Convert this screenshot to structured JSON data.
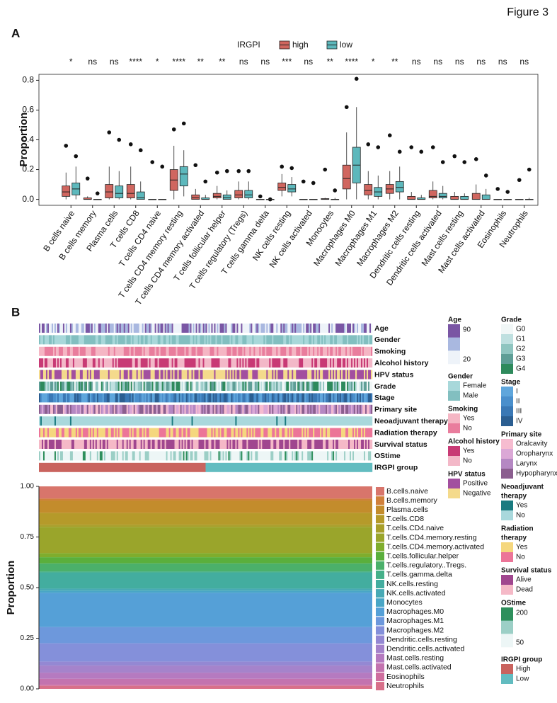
{
  "figure_label": "Figure 3",
  "panel_labels": [
    "A",
    "B"
  ],
  "chart_data": [
    {
      "type": "box",
      "legend_title": "IRGPI",
      "ylabel": "Proportion",
      "categories": [
        "B cells naive",
        "B cells memory",
        "Plasma cells",
        "T cells CD8",
        "T cells CD4 naive",
        "T cells CD4 memory resting",
        "T cells CD4 memory activated",
        "T cells follicular helper",
        "T cells regulatory (Tregs)",
        "T cells gamma delta",
        "NK cells resting",
        "NK cells activated",
        "Monocytes",
        "Macrophages M0",
        "Macrophages M1",
        "Macrophages M2",
        "Dendritic cells resting",
        "Dendritic cells activated",
        "Mast cells resting",
        "Mast cells activated",
        "Eosinophils",
        "Neutrophils"
      ],
      "significance": [
        "*",
        "ns",
        "ns",
        "****",
        "*",
        "****",
        "**",
        "**",
        "ns",
        "ns",
        "***",
        "ns",
        "**",
        "****",
        "*",
        "**",
        "ns",
        "ns",
        "ns",
        "ns",
        "ns",
        "ns"
      ],
      "ylim": [
        -0.04,
        0.84
      ],
      "yticks": [
        {
          "value": 0,
          "label": "0.0"
        },
        0.2,
        0.4,
        0.6,
        0.8
      ],
      "series": [
        {
          "name": "high",
          "color": "#d0665f",
          "whisker_low": [
            0,
            0,
            0,
            0,
            0,
            0,
            0,
            0,
            0,
            0,
            0.02,
            0,
            0,
            0,
            0,
            0,
            0,
            0,
            0,
            0,
            0,
            0
          ],
          "q1": [
            0.02,
            0,
            0.01,
            0.01,
            0,
            0.06,
            0,
            0.01,
            0.01,
            0,
            0.06,
            0,
            0,
            0.07,
            0.03,
            0.04,
            0,
            0.01,
            0,
            0,
            0,
            0
          ],
          "median": [
            0.05,
            0,
            0.05,
            0.04,
            0,
            0.13,
            0.01,
            0.02,
            0.03,
            0,
            0.08,
            0,
            0,
            0.14,
            0.06,
            0.07,
            0,
            0.02,
            0,
            0,
            0,
            0
          ],
          "q3": [
            0.09,
            0.01,
            0.1,
            0.1,
            0,
            0.2,
            0.03,
            0.04,
            0.06,
            0,
            0.11,
            0,
            0.005,
            0.23,
            0.1,
            0.1,
            0.02,
            0.06,
            0.02,
            0.04,
            0,
            0
          ],
          "whisker_high": [
            0.18,
            0.02,
            0.22,
            0.22,
            0,
            0.36,
            0.07,
            0.09,
            0.12,
            0,
            0.17,
            0,
            0.01,
            0.45,
            0.19,
            0.19,
            0.05,
            0.12,
            0.05,
            0.1,
            0,
            0
          ],
          "max": [
            0.36,
            0.14,
            0.45,
            0.37,
            0.25,
            0.47,
            0.23,
            0.18,
            0.19,
            0.02,
            0.22,
            0.12,
            0.2,
            0.62,
            0.37,
            0.43,
            0.35,
            0.35,
            0.29,
            0.27,
            0.07,
            0.13
          ]
        },
        {
          "name": "low",
          "color": "#5db8bc",
          "whisker_low": [
            0,
            0,
            0,
            0,
            0,
            0.02,
            0,
            0,
            0,
            0,
            0.02,
            0,
            0,
            0,
            0,
            0,
            0,
            0,
            0,
            0,
            0,
            0
          ],
          "q1": [
            0.03,
            0,
            0.01,
            0,
            0,
            0.09,
            0,
            0,
            0.01,
            0,
            0.05,
            0,
            0,
            0.11,
            0.02,
            0.05,
            0,
            0.01,
            0,
            0,
            0,
            0
          ],
          "median": [
            0.07,
            0,
            0.04,
            0.01,
            0,
            0.17,
            0,
            0.01,
            0.03,
            0,
            0.07,
            0,
            0,
            0.23,
            0.05,
            0.08,
            0,
            0.02,
            0,
            0,
            0,
            0
          ],
          "q3": [
            0.11,
            0,
            0.09,
            0.05,
            0,
            0.22,
            0.01,
            0.03,
            0.06,
            0,
            0.1,
            0,
            0,
            0.35,
            0.08,
            0.12,
            0.01,
            0.04,
            0.02,
            0.03,
            0,
            0
          ],
          "whisker_high": [
            0.22,
            0,
            0.19,
            0.12,
            0,
            0.33,
            0.03,
            0.06,
            0.12,
            0,
            0.15,
            0,
            0.01,
            0.62,
            0.16,
            0.22,
            0.03,
            0.09,
            0.04,
            0.07,
            0,
            0.01
          ],
          "max": [
            0.29,
            0.04,
            0.4,
            0.33,
            0.22,
            0.51,
            0.12,
            0.19,
            0.19,
            0,
            0.21,
            0.11,
            0.06,
            0.81,
            0.35,
            0.32,
            0.32,
            0.25,
            0.25,
            0.16,
            0.05,
            0.2
          ]
        }
      ]
    },
    {
      "type": "stacked_bar",
      "ylabel": "Proportion",
      "ylim": [
        0,
        1
      ],
      "yticks": [
        {
          "value": 0,
          "label": "0.00"
        },
        {
          "value": 0.25,
          "label": "0.25"
        },
        {
          "value": 0.5,
          "label": "0.50"
        },
        {
          "value": 0.75,
          "label": "0.75"
        },
        {
          "value": 1,
          "label": "1.00"
        }
      ],
      "categories": [
        "B.cells.naive",
        "B.cells.memory",
        "Plasma.cells",
        "T.cells.CD8",
        "T.cells.CD4.naive",
        "T.cells.CD4.memory.resting",
        "T.cells.CD4.memory.activated",
        "T.cells.follicular.helper",
        "T.cells.regulatory..Tregs.",
        "T.cells.gamma.delta",
        "NK.cells.resting",
        "NK.cells.activated",
        "Monocytes",
        "Macrophages.M0",
        "Macrophages.M1",
        "Macrophages.M2",
        "Dendritic.cells.resting",
        "Dendritic.cells.activated",
        "Mast.cells.resting",
        "Mast.cells.activated",
        "Eosinophils",
        "Neutrophils"
      ],
      "colors": [
        "#d8756b",
        "#d0803b",
        "#c38c2c",
        "#b59a2a",
        "#a89f2a",
        "#9aa52b",
        "#7fad2d",
        "#5aaf3c",
        "#4bb06a",
        "#45b089",
        "#43ad9f",
        "#48aab5",
        "#49a6c6",
        "#55a0d7",
        "#6d98dc",
        "#8490da",
        "#9488d3",
        "#a583cb",
        "#b57ac0",
        "#c373af",
        "#cf6e9e",
        "#d8708a"
      ],
      "values": [
        0.06,
        0.01,
        0.06,
        0.06,
        0.01,
        0.13,
        0.02,
        0.03,
        0.04,
        0.005,
        0.08,
        0.01,
        0.01,
        0.17,
        0.08,
        0.09,
        0.02,
        0.035,
        0.03,
        0.03,
        0.005,
        0.015
      ]
    }
  ],
  "annotations": [
    {
      "label": "Age",
      "title": [
        "Age"
      ],
      "ticks": [
        90,
        20
      ],
      "colors": [
        "#7a56a4",
        "#a9b8e0",
        "#eef3f9"
      ]
    },
    {
      "label": "Gender",
      "title": [
        "Gender"
      ],
      "items": [
        {
          "label": "Female",
          "color": "#a8d8da"
        },
        {
          "label": "Male",
          "color": "#82bfc0"
        }
      ]
    },
    {
      "label": "Smoking",
      "title": [
        "Smoking"
      ],
      "items": [
        {
          "label": "Yes",
          "color": "#f5b6c4"
        },
        {
          "label": "No",
          "color": "#e97d9d"
        }
      ]
    },
    {
      "label": "Alcohol history",
      "title": [
        "Alcohol history"
      ],
      "items": [
        {
          "label": "Yes",
          "color": "#c83a75"
        },
        {
          "label": "No",
          "color": "#f3b8c8"
        }
      ]
    },
    {
      "label": "HPV status",
      "title": [
        "HPV status"
      ],
      "items": [
        {
          "label": "Positive",
          "color": "#a24f9f"
        },
        {
          "label": "Negative",
          "color": "#f4da8c"
        }
      ]
    },
    {
      "label": "Grade",
      "title": [
        "Grade"
      ],
      "items": [
        {
          "label": "G0",
          "color": "#f1f7f7"
        },
        {
          "label": "G1",
          "color": "#bfe0e0"
        },
        {
          "label": "G2",
          "color": "#8fc5c0"
        },
        {
          "label": "G3",
          "color": "#5e9e96"
        },
        {
          "label": "G4",
          "color": "#2e8a5c"
        }
      ]
    },
    {
      "label": "Stage",
      "title": [
        "Stage"
      ],
      "items": [
        {
          "label": "I",
          "color": "#5fa6dc"
        },
        {
          "label": "II",
          "color": "#4a8fcc"
        },
        {
          "label": "III",
          "color": "#3a78b5"
        },
        {
          "label": "IV",
          "color": "#2b5e91"
        }
      ]
    },
    {
      "label": "Primary site",
      "title": [
        "Primary site"
      ],
      "items": [
        {
          "label": "Oralcavity",
          "color": "#f6bcd0"
        },
        {
          "label": "Oropharynx",
          "color": "#dba8d6"
        },
        {
          "label": "Larynx",
          "color": "#b588c3"
        },
        {
          "label": "Hypopharynx",
          "color": "#8b5e8f"
        }
      ]
    },
    {
      "label": "Neoadjuvant therapy",
      "title": [
        "Neoadjuvant",
        "therapy"
      ],
      "items": [
        {
          "label": "Yes",
          "color": "#1a7b80"
        },
        {
          "label": "No",
          "color": "#a9d8dc"
        }
      ]
    },
    {
      "label": "Radiation therapy",
      "title": [
        "Radiation",
        "therapy"
      ],
      "items": [
        {
          "label": "Yes",
          "color": "#f5d77e"
        },
        {
          "label": "No",
          "color": "#ec7598"
        }
      ]
    },
    {
      "label": "Survival status",
      "title": [
        "Survival status"
      ],
      "items": [
        {
          "label": "Alive",
          "color": "#a0468f"
        },
        {
          "label": "Dead",
          "color": "#f5b9c7"
        }
      ]
    },
    {
      "label": "OStime",
      "title": [
        "OStime"
      ],
      "ticks": [
        200,
        50
      ],
      "colors": [
        "#2e8f5c",
        "#9ccfc6",
        "#edf6f6"
      ]
    },
    {
      "label": "IRGPI group",
      "title": [
        "IRGPI group"
      ],
      "items": [
        {
          "label": "High",
          "color": "#c9635e"
        },
        {
          "label": "Low",
          "color": "#62bcc0"
        }
      ]
    }
  ]
}
